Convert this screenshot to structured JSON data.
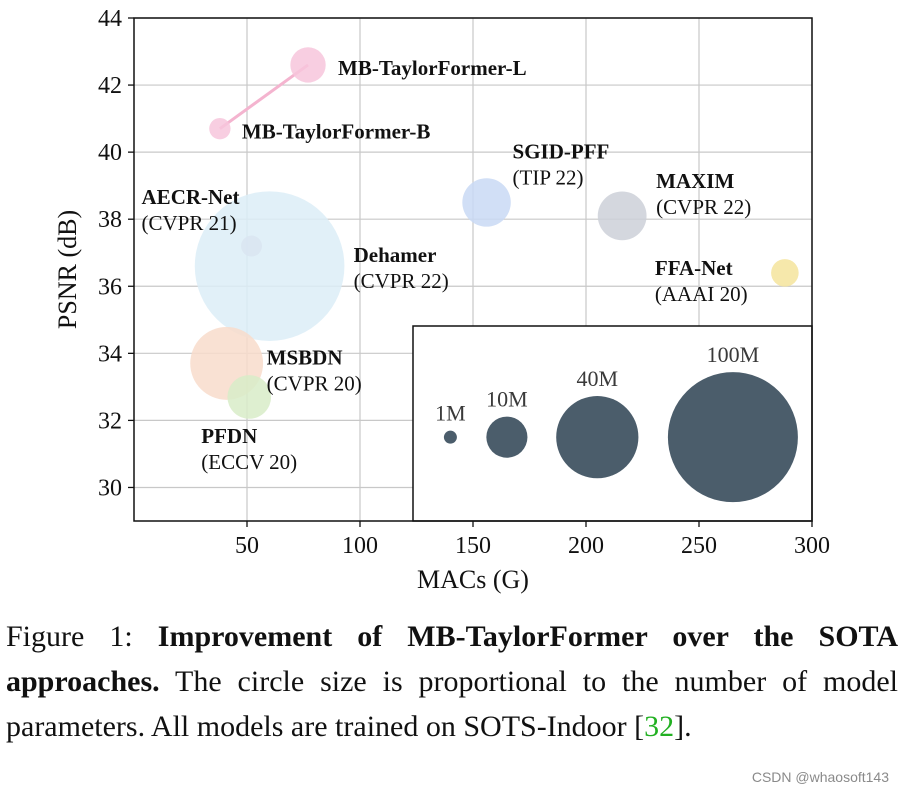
{
  "chart_data": {
    "type": "scatter",
    "xlabel": "MACs (G)",
    "ylabel": "PSNR (dB)",
    "xlim": [
      0,
      300
    ],
    "ylim": [
      29,
      44
    ],
    "xticks": [
      50,
      100,
      150,
      200,
      250,
      300
    ],
    "yticks": [
      30,
      32,
      34,
      36,
      38,
      40,
      42,
      44
    ],
    "grid": true,
    "points": [
      {
        "name": "MB-TaylorFormer-L",
        "venue": "",
        "x": 77,
        "y": 42.6,
        "params_m": 7.4,
        "color": "#f7c6dc"
      },
      {
        "name": "MB-TaylorFormer-B",
        "venue": "",
        "x": 38,
        "y": 40.7,
        "params_m": 2.7,
        "color": "#f7c6dc"
      },
      {
        "name": "SGID-PFF",
        "venue": "(TIP 22)",
        "x": 156,
        "y": 38.5,
        "params_m": 13.9,
        "color": "#c9d9f4"
      },
      {
        "name": "MAXIM",
        "venue": "(CVPR 22)",
        "x": 216,
        "y": 38.1,
        "params_m": 14.1,
        "color": "#cdd0d8"
      },
      {
        "name": "AECR-Net",
        "venue": "(CVPR 21)",
        "x": 52,
        "y": 37.2,
        "params_m": 2.6,
        "color": "#cbb6d0"
      },
      {
        "name": "Dehamer",
        "venue": "(CVPR 22)",
        "x": 60,
        "y": 36.6,
        "params_m": 132.5,
        "color": "#dcedf7"
      },
      {
        "name": "FFA-Net",
        "venue": "(AAAI 20)",
        "x": 288,
        "y": 36.4,
        "params_m": 4.5,
        "color": "#f5e49c"
      },
      {
        "name": "MSBDN",
        "venue": "(CVPR 20)",
        "x": 41,
        "y": 33.7,
        "params_m": 31.4,
        "color": "#f8dccb"
      },
      {
        "name": "PFDN",
        "venue": "(ECCV 20)",
        "x": 51,
        "y": 32.7,
        "params_m": 11.3,
        "color": "#d8ecc8"
      }
    ],
    "connections": [
      [
        "MB-TaylorFormer-B",
        "MB-TaylorFormer-L"
      ]
    ],
    "size_legend": {
      "entries": [
        {
          "label": "1M",
          "x": 140,
          "value_m": 1
        },
        {
          "label": "10M",
          "x": 165,
          "value_m": 10
        },
        {
          "label": "40M",
          "x": 205,
          "value_m": 40
        },
        {
          "label": "100M",
          "x": 265,
          "value_m": 100
        }
      ],
      "y": 31.5,
      "color": "#4b5d6b",
      "placement": "bottom-right"
    }
  },
  "caption": {
    "prefix": "Figure 1: ",
    "bold": "Improvement of MB-TaylorFormer over the SOTA approaches.",
    "rest": " The circle size is proportional to the number of model parameters. All models are trained on SOTS-Indoor [",
    "ref": "32",
    "end": "]."
  },
  "watermark": "CSDN @whaosoft143"
}
